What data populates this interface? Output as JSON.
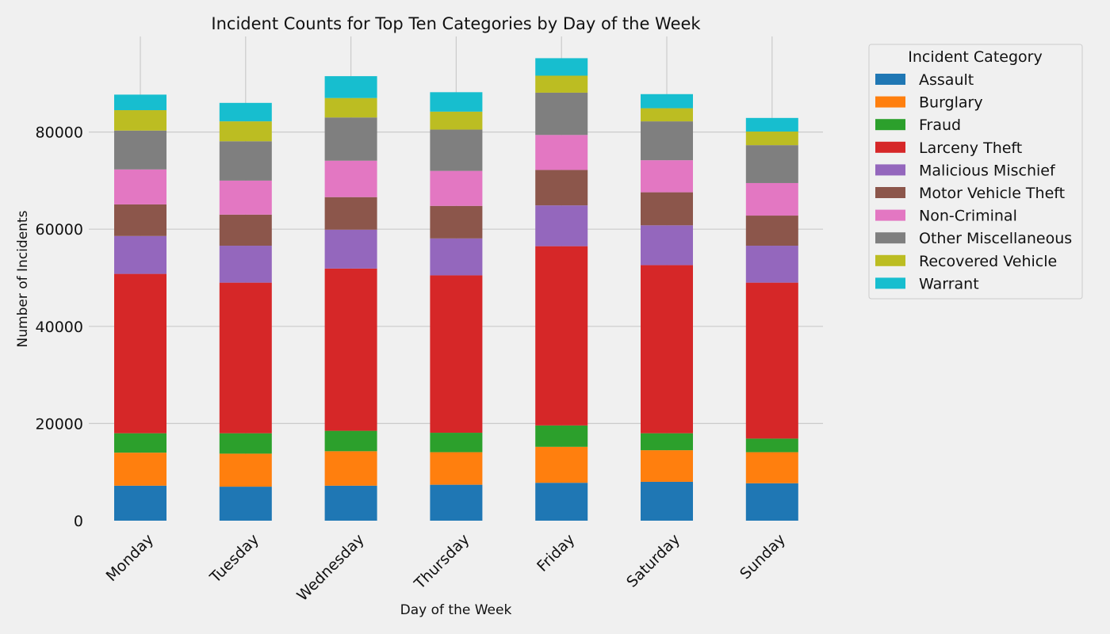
{
  "chart_data": {
    "type": "bar",
    "stacked": true,
    "title": "Incident Counts for Top Ten Categories by Day of the Week",
    "xlabel": "Day of the Week",
    "ylabel": "Number of Incidents",
    "ylim": [
      0,
      100000
    ],
    "yticks": [
      0,
      20000,
      40000,
      60000,
      80000
    ],
    "grid": true,
    "categories": [
      "Monday",
      "Tuesday",
      "Wednesday",
      "Thursday",
      "Friday",
      "Saturday",
      "Sunday"
    ],
    "legend": {
      "title": "Incident Category",
      "placement": "outside-top-right"
    },
    "series": [
      {
        "name": "Assault",
        "color": "#1f77b4",
        "values": [
          7200,
          7000,
          7200,
          7400,
          7800,
          8000,
          7700
        ]
      },
      {
        "name": "Burglary",
        "color": "#ff7f0e",
        "values": [
          6800,
          6800,
          7100,
          6700,
          7400,
          6500,
          6400
        ]
      },
      {
        "name": "Fraud",
        "color": "#2ca02c",
        "values": [
          4000,
          4200,
          4200,
          4000,
          4400,
          3500,
          2800
        ]
      },
      {
        "name": "Larceny Theft",
        "color": "#d62728",
        "values": [
          32800,
          31000,
          33400,
          32400,
          36900,
          34600,
          32100
        ]
      },
      {
        "name": "Malicious Mischief",
        "color": "#9467bd",
        "values": [
          7800,
          7600,
          8000,
          7600,
          8400,
          8200,
          7600
        ]
      },
      {
        "name": "Motor Vehicle Theft",
        "color": "#8c564b",
        "values": [
          6500,
          6400,
          6700,
          6700,
          7300,
          6800,
          6200
        ]
      },
      {
        "name": "Non-Criminal",
        "color": "#e377c2",
        "values": [
          7200,
          7000,
          7500,
          7200,
          7200,
          6600,
          6700
        ]
      },
      {
        "name": "Other Miscellaneous",
        "color": "#7f7f7f",
        "values": [
          8000,
          8100,
          8900,
          8500,
          8700,
          8000,
          7800
        ]
      },
      {
        "name": "Recovered Vehicle",
        "color": "#bcbd22",
        "values": [
          4200,
          4100,
          4000,
          3700,
          3500,
          2700,
          2800
        ]
      },
      {
        "name": "Warrant",
        "color": "#17becf",
        "values": [
          3200,
          3800,
          4500,
          4000,
          3600,
          2900,
          2800
        ]
      }
    ]
  }
}
